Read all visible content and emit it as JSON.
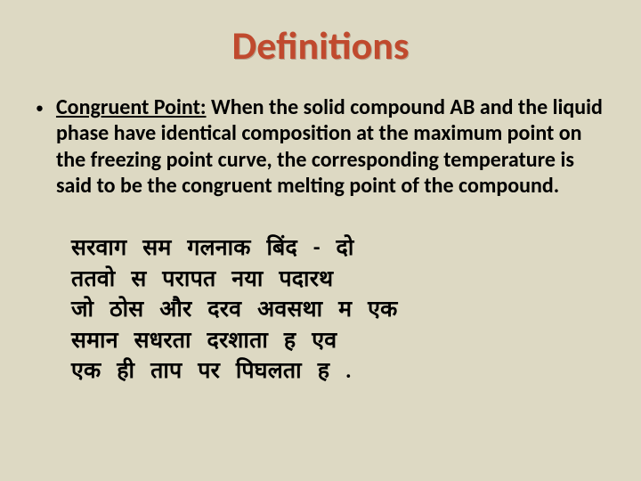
{
  "title": "Definitions",
  "bullet": "•",
  "definition": {
    "term": "Congruent Point:",
    "text": " When the solid compound AB and the liquid phase have identical composition at the maximum point on the freezing point curve, the corresponding temperature is said to be the congruent melting point of the compound."
  },
  "hindi": {
    "line1": "सरवाग   सम  गलनाक   बिंद    -  दो",
    "line2": "ततवो    स   परापत    नया   पदारथ",
    "line3": "जो   ठोस   और  दरव   अवसथा    म    एक",
    "line4": "समान   सधरता     दरशाता    ह   एव",
    "line5": "एक  ही   ताप   पर  पिघलता   ह  ."
  },
  "colors": {
    "background": "#ddd9c3",
    "title": "#c04a2e",
    "text": "#000000"
  }
}
